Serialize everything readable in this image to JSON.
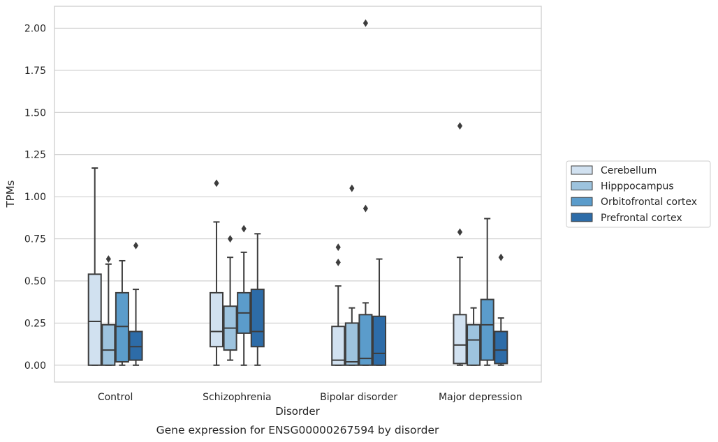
{
  "chart_data": {
    "type": "box",
    "title": "Gene expression for ENSG00000267594 by disorder",
    "xlabel": "Disorder",
    "ylabel": "TPMs",
    "ylim": [
      -0.1,
      2.13
    ],
    "yticks": [
      0.0,
      0.25,
      0.5,
      0.75,
      1.0,
      1.25,
      1.5,
      1.75,
      2.0
    ],
    "ytick_labels": [
      "0.00",
      "0.25",
      "0.50",
      "0.75",
      "1.00",
      "1.25",
      "1.50",
      "1.75",
      "2.00"
    ],
    "categories": [
      "Control",
      "Schizophrenia",
      "Bipolar disorder",
      "Major depression"
    ],
    "grid": true,
    "legend_position": "right",
    "series": [
      {
        "name": "Cerebellum",
        "color": "#d1e1f0",
        "boxes": [
          {
            "whislo": 0.0,
            "q1": 0.0,
            "med": 0.26,
            "q3": 0.54,
            "whishi": 1.17,
            "fliers": []
          },
          {
            "whislo": 0.0,
            "q1": 0.11,
            "med": 0.2,
            "q3": 0.43,
            "whishi": 0.85,
            "fliers": [
              1.08
            ]
          },
          {
            "whislo": 0.0,
            "q1": 0.0,
            "med": 0.03,
            "q3": 0.23,
            "whishi": 0.47,
            "fliers": [
              0.61,
              0.7
            ]
          },
          {
            "whislo": 0.0,
            "q1": 0.01,
            "med": 0.12,
            "q3": 0.3,
            "whishi": 0.64,
            "fliers": [
              0.79,
              1.42
            ]
          }
        ]
      },
      {
        "name": "Hipppocampus",
        "color": "#9dc3de",
        "boxes": [
          {
            "whislo": 0.0,
            "q1": 0.0,
            "med": 0.09,
            "q3": 0.24,
            "whishi": 0.6,
            "fliers": [
              0.63
            ]
          },
          {
            "whislo": 0.03,
            "q1": 0.09,
            "med": 0.22,
            "q3": 0.35,
            "whishi": 0.64,
            "fliers": [
              0.75
            ]
          },
          {
            "whislo": 0.0,
            "q1": 0.0,
            "med": 0.02,
            "q3": 0.25,
            "whishi": 0.34,
            "fliers": [
              1.05
            ]
          },
          {
            "whislo": 0.0,
            "q1": 0.0,
            "med": 0.15,
            "q3": 0.24,
            "whishi": 0.34,
            "fliers": []
          }
        ]
      },
      {
        "name": "Orbitofrontal cortex",
        "color": "#5b9ccb",
        "boxes": [
          {
            "whislo": 0.0,
            "q1": 0.02,
            "med": 0.23,
            "q3": 0.43,
            "whishi": 0.62,
            "fliers": []
          },
          {
            "whislo": 0.0,
            "q1": 0.19,
            "med": 0.31,
            "q3": 0.43,
            "whishi": 0.67,
            "fliers": [
              0.81
            ]
          },
          {
            "whislo": 0.0,
            "q1": 0.0,
            "med": 0.04,
            "q3": 0.3,
            "whishi": 0.37,
            "fliers": [
              0.93,
              2.03
            ]
          },
          {
            "whislo": 0.0,
            "q1": 0.03,
            "med": 0.24,
            "q3": 0.39,
            "whishi": 0.87,
            "fliers": []
          }
        ]
      },
      {
        "name": "Prefrontal cortex",
        "color": "#2d6ca8",
        "boxes": [
          {
            "whislo": 0.0,
            "q1": 0.03,
            "med": 0.11,
            "q3": 0.2,
            "whishi": 0.45,
            "fliers": [
              0.71
            ]
          },
          {
            "whislo": 0.0,
            "q1": 0.11,
            "med": 0.2,
            "q3": 0.45,
            "whishi": 0.78,
            "fliers": []
          },
          {
            "whislo": 0.0,
            "q1": 0.0,
            "med": 0.07,
            "q3": 0.29,
            "whishi": 0.63,
            "fliers": []
          },
          {
            "whislo": 0.0,
            "q1": 0.01,
            "med": 0.09,
            "q3": 0.2,
            "whishi": 0.28,
            "fliers": [
              0.64
            ]
          }
        ]
      }
    ]
  }
}
